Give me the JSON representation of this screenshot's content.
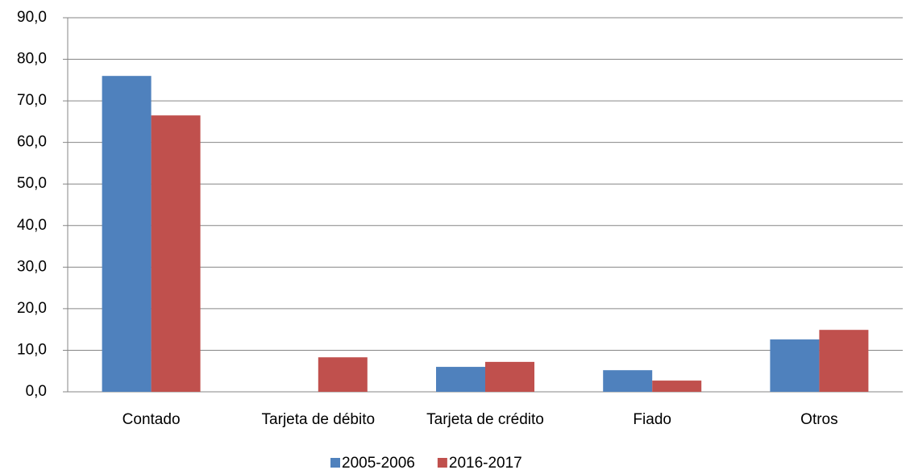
{
  "chart_data": {
    "type": "bar",
    "categories": [
      "Contado",
      "Tarjeta de débito",
      "Tarjeta de crédito",
      "Fiado",
      "Otros"
    ],
    "series": [
      {
        "name": "2005-2006",
        "color": "#4f81bd",
        "values": [
          76.0,
          0,
          6.0,
          5.2,
          12.6
        ]
      },
      {
        "name": "2016-2017",
        "color": "#c0504d",
        "values": [
          66.5,
          8.3,
          7.2,
          2.7,
          14.9
        ]
      }
    ],
    "ylim": [
      0,
      90
    ],
    "yticks": [
      {
        "value": 0,
        "label": "0,0"
      },
      {
        "value": 10,
        "label": "10,0"
      },
      {
        "value": 20,
        "label": "20,0"
      },
      {
        "value": 30,
        "label": "30,0"
      },
      {
        "value": 40,
        "label": "40,0"
      },
      {
        "value": 50,
        "label": "50,0"
      },
      {
        "value": 60,
        "label": "60,0"
      },
      {
        "value": 70,
        "label": "70,0"
      },
      {
        "value": 80,
        "label": "80,0"
      },
      {
        "value": 90,
        "label": "90,0"
      }
    ],
    "grid": true,
    "legend": "bottom"
  }
}
